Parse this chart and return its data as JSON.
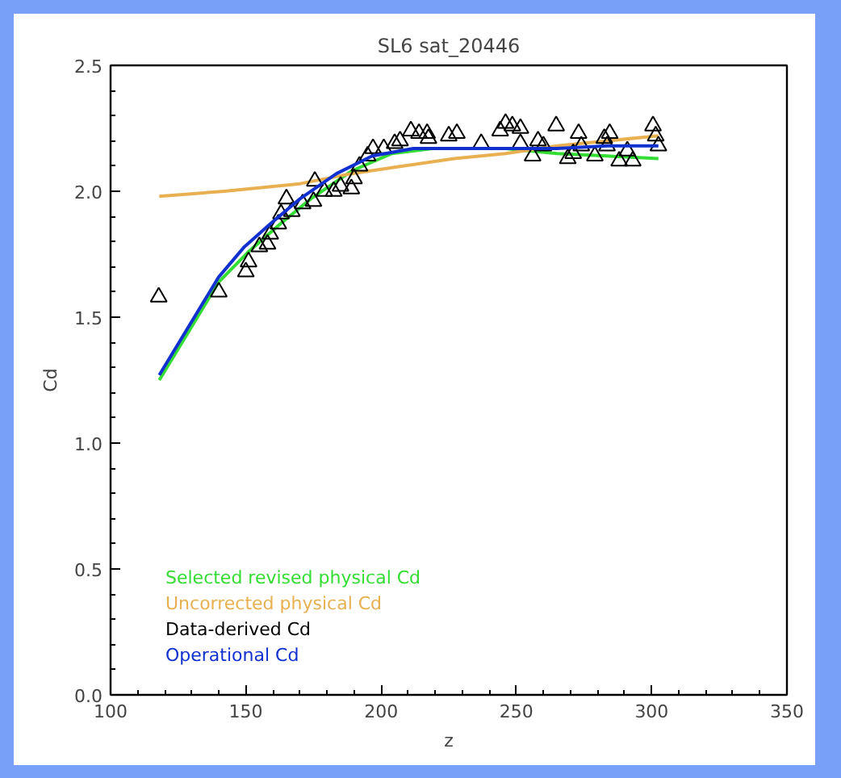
{
  "chart_data": {
    "type": "line",
    "title": "SL6 sat_20446",
    "xlabel": "z",
    "ylabel": "Cd",
    "xlim": [
      100,
      350
    ],
    "ylim": [
      0,
      2.5
    ],
    "xticks": [
      100,
      150,
      200,
      250,
      300,
      350
    ],
    "yticks": [
      {
        "value": 0,
        "label": "0.0"
      },
      {
        "value": 0.5,
        "label": "0.5"
      },
      {
        "value": 1,
        "label": "1.0"
      },
      {
        "value": 1.5,
        "label": "1.5"
      },
      {
        "value": 2,
        "label": "2.0"
      },
      {
        "value": 2.5,
        "label": "2.5"
      }
    ],
    "grid": false,
    "legend": "bottom left",
    "marker": "none",
    "line_style": "solid",
    "series": [
      {
        "name": "Selected revised physical Cd",
        "color": "#33dd33",
        "x": [
          118,
          140,
          151,
          162.7,
          174,
          189,
          204,
          219,
          246,
          265,
          283.5,
          302.5
        ],
        "values": [
          1.25,
          1.64,
          1.76,
          1.87,
          1.97,
          2.08,
          2.15,
          2.17,
          2.17,
          2.15,
          2.14,
          2.13
        ]
      },
      {
        "name": "Uncorrected physical Cd",
        "color": "#e8b050",
        "x": [
          118,
          142,
          170,
          189,
          208,
          227,
          246,
          265,
          283.5,
          302.5
        ],
        "values": [
          1.98,
          2.0,
          2.03,
          2.07,
          2.1,
          2.13,
          2.15,
          2.18,
          2.2,
          2.22
        ]
      },
      {
        "name": "Data-derived Cd",
        "color": "#000000",
        "type": "scatter",
        "marker": "triangle",
        "x": [
          117.8,
          140,
          150,
          151,
          155,
          158,
          159,
          162,
          163,
          165,
          167,
          171,
          175,
          175.5,
          179,
          182.5,
          185,
          189,
          190,
          192,
          195,
          197,
          201,
          205,
          207,
          211,
          214,
          217,
          217.5,
          225,
          228,
          237,
          241,
          244,
          246,
          248.5,
          251.5,
          251.5,
          256,
          258,
          260,
          264.7,
          269,
          271,
          273,
          274,
          279,
          282.5,
          283.5,
          284.5,
          288,
          291,
          293,
          300.5,
          301.5,
          302.5
        ],
        "values": [
          1.58,
          1.6,
          1.68,
          1.72,
          1.78,
          1.79,
          1.83,
          1.87,
          1.91,
          1.97,
          1.92,
          1.95,
          1.96,
          2.04,
          2.0,
          2.0,
          2.02,
          2.01,
          2.05,
          2.1,
          2.14,
          2.17,
          2.17,
          2.19,
          2.2,
          2.24,
          2.23,
          2.23,
          2.21,
          2.22,
          2.23,
          2.19,
          null,
          2.24,
          2.27,
          2.26,
          2.25,
          2.19,
          2.14,
          2.2,
          2.18,
          2.26,
          2.13,
          2.15,
          2.23,
          2.18,
          2.14,
          2.21,
          2.18,
          2.23,
          2.12,
          2.16,
          2.12,
          2.26,
          2.22,
          2.18
        ]
      },
      {
        "name": "Operational Cd",
        "color": "#1030d0",
        "x": [
          118,
          140,
          149.5,
          159,
          170,
          183.5,
          196.7,
          212,
          227,
          246,
          265,
          283.5,
          302.5
        ],
        "values": [
          1.27,
          1.66,
          1.78,
          1.87,
          1.97,
          2.07,
          2.14,
          2.17,
          2.17,
          2.17,
          2.17,
          2.18,
          2.18
        ]
      }
    ]
  }
}
